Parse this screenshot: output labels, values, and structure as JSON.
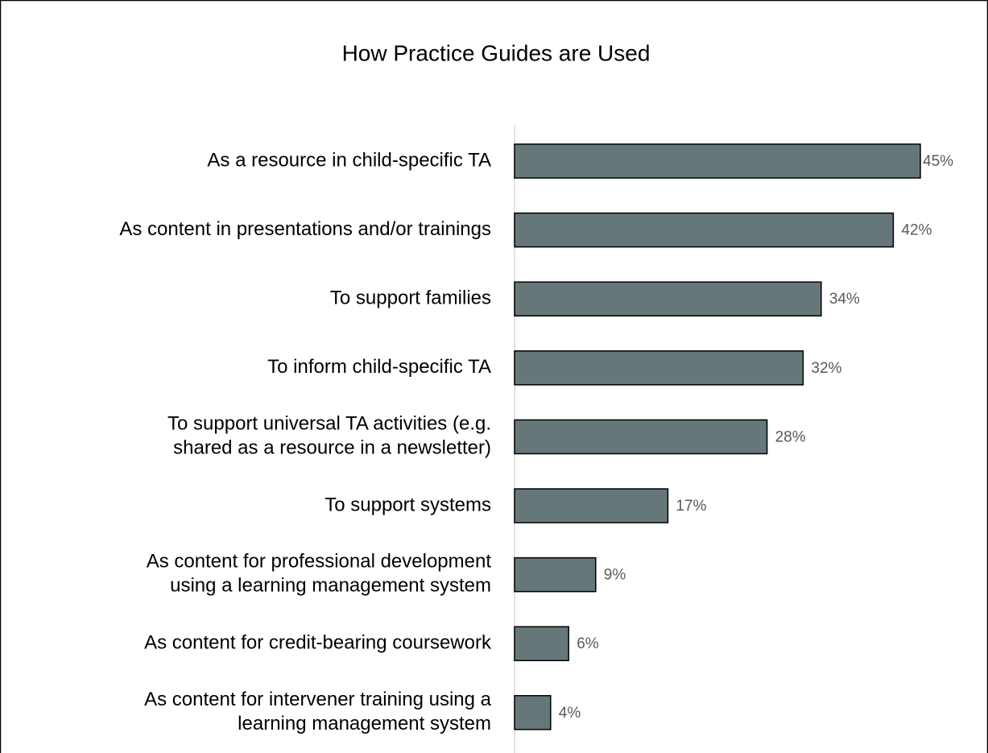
{
  "chart_data": {
    "type": "bar",
    "orientation": "horizontal",
    "title": "How Practice Guides are Used",
    "categories": [
      "As a resource in child-specific TA",
      "As content in presentations and/or trainings",
      "To support families",
      "To inform child-specific TA",
      "To support universal TA activities (e.g.\nshared as a resource in a newsletter)",
      "To support systems",
      "As content for professional development\nusing a learning management system",
      "As content for credit-bearing coursework",
      "As content for intervener training using a\nlearning management system"
    ],
    "values": [
      45,
      42,
      34,
      32,
      28,
      17,
      9,
      6,
      4
    ],
    "value_labels": [
      "45%",
      "42%",
      "34%",
      "32%",
      "28%",
      "17%",
      "9%",
      "6%",
      "4%"
    ],
    "color": "#657779"
  }
}
